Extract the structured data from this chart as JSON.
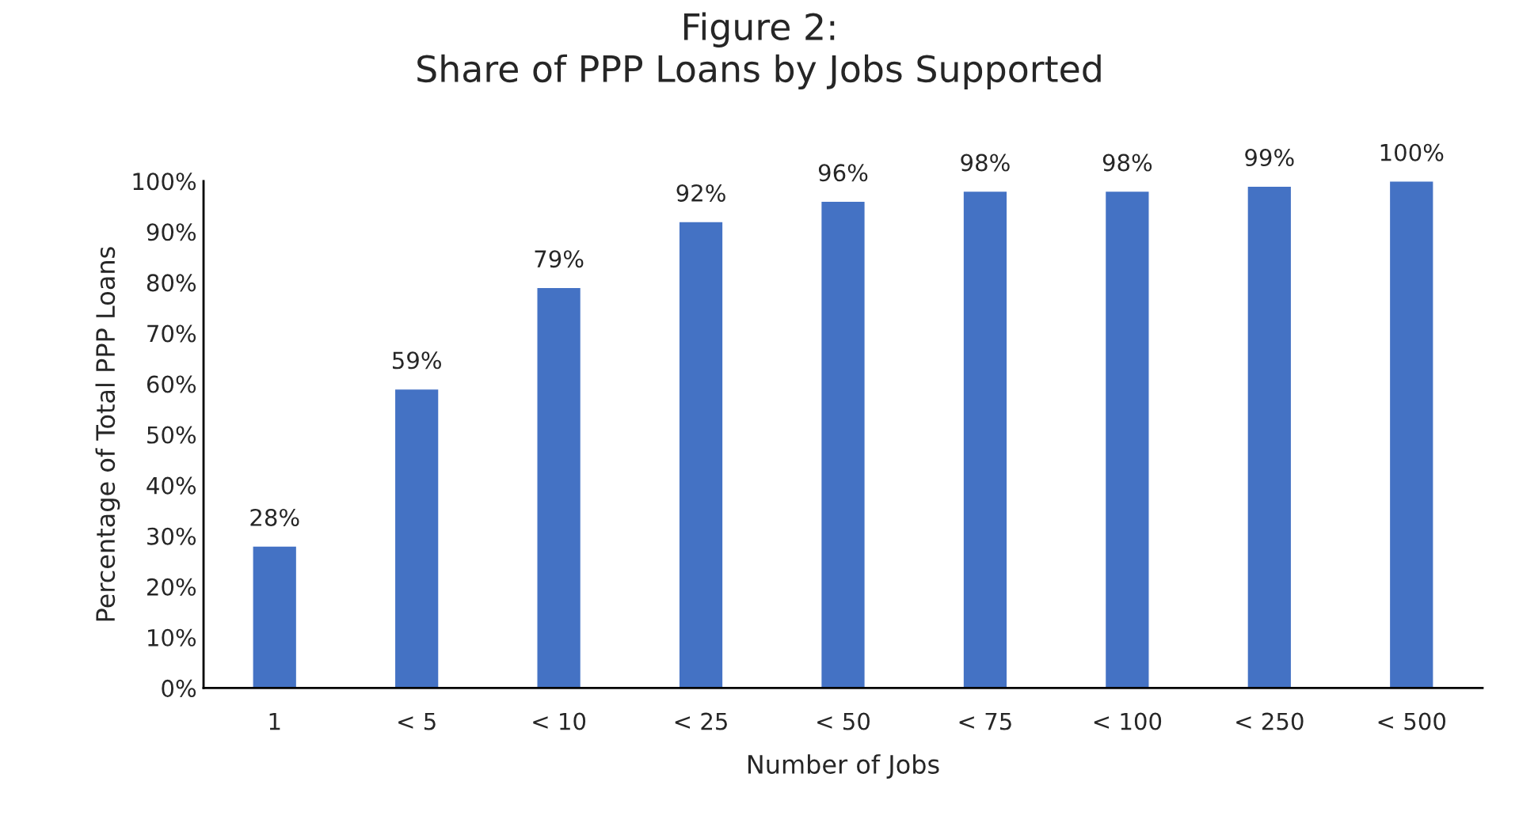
{
  "chart_data": {
    "type": "bar",
    "title": "Figure 2:\nShare of PPP Loans by Jobs Supported",
    "xlabel": "Number of Jobs",
    "ylabel": "Percentage of Total PPP Loans",
    "categories": [
      "1",
      "< 5",
      "< 10",
      "< 25",
      "< 50",
      "< 75",
      "< 100",
      "< 250",
      "< 500"
    ],
    "values": [
      28,
      59,
      79,
      92,
      96,
      98,
      98,
      99,
      100
    ],
    "value_labels": [
      "28%",
      "59%",
      "79%",
      "92%",
      "96%",
      "98%",
      "98%",
      "99%",
      "100%"
    ],
    "color": "#4472c4",
    "ylim": [
      0,
      100
    ],
    "yticks": [
      {
        "value": 0,
        "label": "0%"
      },
      {
        "value": 10,
        "label": "10%"
      },
      {
        "value": 20,
        "label": "20%"
      },
      {
        "value": 30,
        "label": "30%"
      },
      {
        "value": 40,
        "label": "40%"
      },
      {
        "value": 50,
        "label": "50%"
      },
      {
        "value": 60,
        "label": "60%"
      },
      {
        "value": 70,
        "label": "70%"
      },
      {
        "value": 80,
        "label": "80%"
      },
      {
        "value": 90,
        "label": "90%"
      },
      {
        "value": 100,
        "label": "100%"
      }
    ],
    "grid": false
  }
}
